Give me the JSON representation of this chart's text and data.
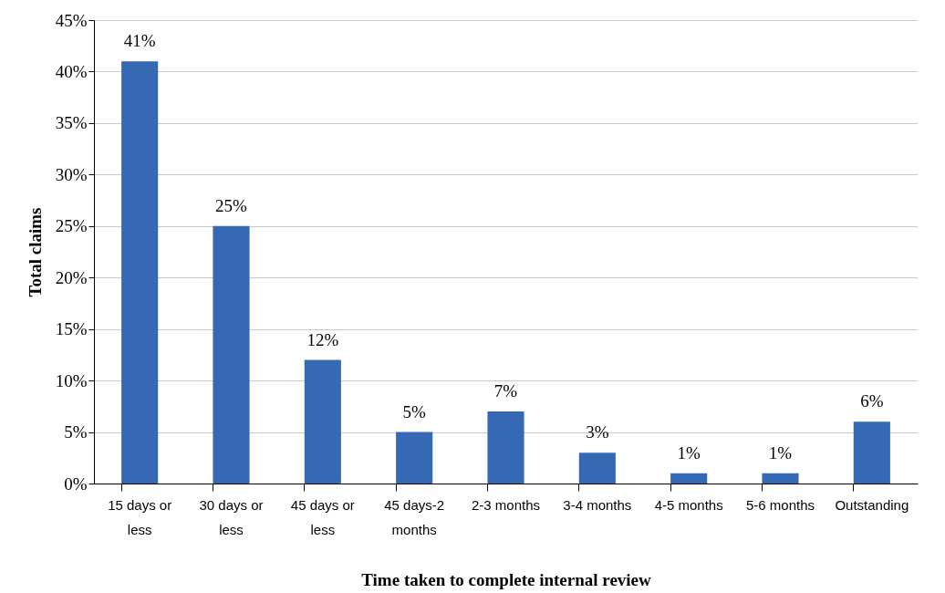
{
  "chart_data": {
    "type": "bar",
    "xlabel": "Time taken to complete internal review",
    "ylabel": "Total claims",
    "categories": [
      "15 days or less",
      "30 days or less",
      "45 days or less",
      "45 days-2 months",
      "2-3 months",
      "3-4 months",
      "4-5 months",
      "5-6 months",
      "Outstanding"
    ],
    "values": [
      41,
      25,
      12,
      5,
      7,
      3,
      1,
      1,
      6
    ],
    "value_labels": [
      "41%",
      "25%",
      "12%",
      "5%",
      "7%",
      "3%",
      "1%",
      "1%",
      "6%"
    ],
    "color": "#3669b4",
    "ylim": [
      0,
      45
    ],
    "yticks": [
      {
        "value": 0,
        "label": "0%"
      },
      {
        "value": 5,
        "label": "5%"
      },
      {
        "value": 10,
        "label": "10%"
      },
      {
        "value": 15,
        "label": "15%"
      },
      {
        "value": 20,
        "label": "20%"
      },
      {
        "value": 25,
        "label": "25%"
      },
      {
        "value": 30,
        "label": "30%"
      },
      {
        "value": 35,
        "label": "35%"
      },
      {
        "value": 40,
        "label": "40%"
      },
      {
        "value": 45,
        "label": "45%"
      }
    ],
    "grid": "y"
  }
}
